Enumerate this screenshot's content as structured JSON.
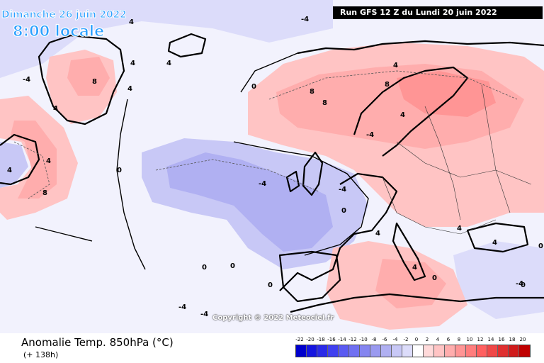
{
  "header": {
    "date": "Dimanche 26 juin 2022",
    "time": "8:00 locale",
    "run": "Run GFS 12 Z du Lundi 20 juin 2022"
  },
  "footer": {
    "title": "Anomalie Temp. 850hPa (°C)",
    "offset": "(+ 138h)",
    "copyright": "Copyright © 2022 Meteociel.fr"
  },
  "legend": {
    "ticks": [
      "-22",
      "-20",
      "-18",
      "-16",
      "-14",
      "-12",
      "-10",
      "-8",
      "-6",
      "-4",
      "-2",
      "0",
      "2",
      "4",
      "6",
      "8",
      "10",
      "12",
      "14",
      "16",
      "18",
      "20"
    ],
    "colors": [
      "#0000cc",
      "#1515e0",
      "#2a2ae8",
      "#4040f0",
      "#5a5af2",
      "#7070f2",
      "#8585f0",
      "#9a9af0",
      "#b0b0f2",
      "#c8c8f6",
      "#dcdcfa",
      "#ffffff",
      "#ffdada",
      "#ffc4c4",
      "#ffadad",
      "#ff9595",
      "#ff7d7d",
      "#ff6060",
      "#f04848",
      "#e03030",
      "#d01c1c",
      "#c00000"
    ]
  },
  "contour_labels": [
    "4",
    "8",
    "-4",
    "0",
    "8",
    "4",
    "8",
    "8",
    "4",
    "0",
    "-4",
    "4",
    "8",
    "-4",
    "0",
    "-4",
    "4",
    "0",
    "4",
    "0",
    "4",
    "0",
    "0",
    "-4",
    "4",
    "0",
    "0",
    "-4",
    "4",
    "4",
    "4",
    "-4",
    "-4",
    "4",
    "4"
  ]
}
